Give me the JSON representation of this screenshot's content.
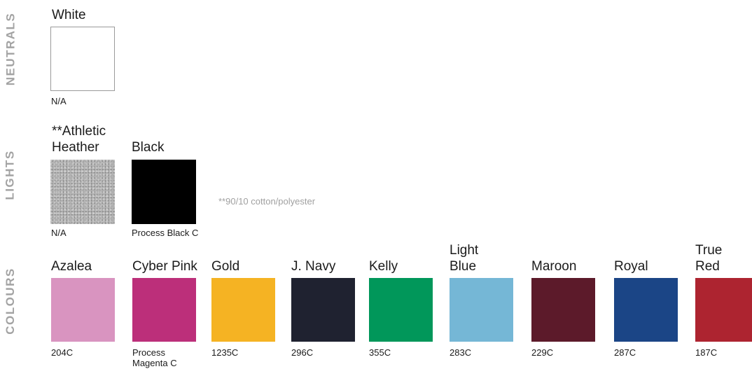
{
  "categories": {
    "neutrals": "NEUTRALS",
    "lights": "LIGHTS",
    "colours": "COLOURS"
  },
  "neutrals": [
    {
      "name": "White",
      "code": "N/A",
      "color": "#ffffff"
    }
  ],
  "lights": [
    {
      "name": "**Athletic Heather",
      "code": "N/A",
      "color": "#b5b5b5"
    },
    {
      "name": "Black",
      "code": "Process Black C",
      "color": "#000000"
    }
  ],
  "lights_note": "**90/10 cotton/polyester",
  "colours": [
    {
      "name": "Azalea",
      "code": "204C",
      "color": "#d994c0"
    },
    {
      "name": "Cyber Pink",
      "code": "Process Magenta C",
      "color": "#bc2f7a"
    },
    {
      "name": "Gold",
      "code": "1235C",
      "color": "#f5b323"
    },
    {
      "name": "J. Navy",
      "code": "296C",
      "color": "#1f2230"
    },
    {
      "name": "Kelly",
      "code": "355C",
      "color": "#01975a"
    },
    {
      "name": "Light Blue",
      "code": "283C",
      "color": "#75b7d6"
    },
    {
      "name": "Maroon",
      "code": "229C",
      "color": "#5c1a2a"
    },
    {
      "name": "Royal",
      "code": "287C",
      "color": "#1b4586"
    },
    {
      "name": "True Red",
      "code": "187C",
      "color": "#ad2430"
    }
  ]
}
